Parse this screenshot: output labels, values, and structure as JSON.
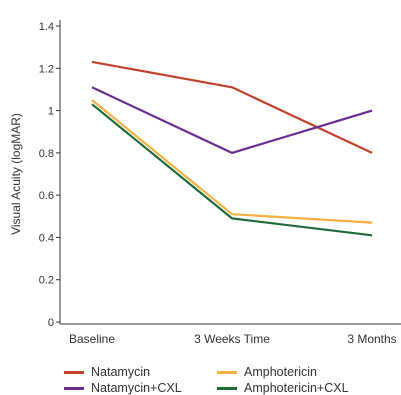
{
  "chart_data": {
    "type": "line",
    "categories": [
      "Baseline",
      "3 Weeks Time",
      "3 Months"
    ],
    "ylabel": "Visual Acuity (logMAR)",
    "xlabel": "",
    "ylim": [
      0,
      1.4
    ],
    "yticks": [
      0,
      0.2,
      0.4,
      0.6,
      0.8,
      1,
      1.2,
      1.4
    ],
    "ytick_labels": [
      "0",
      "0.2",
      "0.4",
      "0.6",
      "0.8",
      "1",
      "1.2",
      "1.4"
    ],
    "grid": false,
    "legend_position": "bottom",
    "series": [
      {
        "name": "Natamycin",
        "color": "#c0422b",
        "values": [
          1.23,
          1.11,
          0.8
        ]
      },
      {
        "name": "Amphotericin",
        "color": "#f5b041",
        "values": [
          1.05,
          0.51,
          0.47
        ]
      },
      {
        "name": "Natamycin+CXL",
        "color": "#6b2c91",
        "values": [
          1.11,
          0.8,
          1.0
        ]
      },
      {
        "name": "Amphotericin+CXL",
        "color": "#1e6b3a",
        "values": [
          1.03,
          0.49,
          0.41
        ]
      }
    ]
  }
}
